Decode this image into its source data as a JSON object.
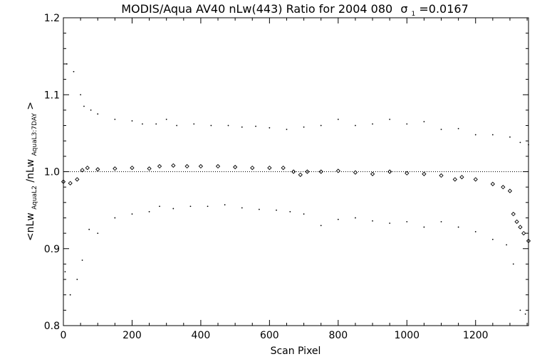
{
  "chart_data": {
    "type": "scatter",
    "title_main": "MODIS/Aqua AV40 nLw(443) Ratio for 2004 080",
    "title_sigma": "σ",
    "title_sigma_sub": "1",
    "title_sigma_value": "=0.0167",
    "xlabel": "Scan Pixel",
    "ylabel_parts": {
      "open": "<nLw",
      "sub1": "AquaL2",
      "mid": "/nLw",
      "sub2": "AquaL3:7DAY",
      "close": ">"
    },
    "xlim": [
      0,
      1354
    ],
    "ylim": [
      0.8,
      1.2
    ],
    "xticks": [
      0,
      200,
      400,
      600,
      800,
      1000,
      1200
    ],
    "yticks": [
      0.8,
      0.9,
      1.0,
      1.1,
      1.2
    ],
    "reference_line": 1.0,
    "grid": false,
    "series": [
      {
        "role": "mean",
        "marker": "diamond",
        "points": [
          [
            0,
            0.987
          ],
          [
            20,
            0.985
          ],
          [
            40,
            0.99
          ],
          [
            55,
            1.002
          ],
          [
            70,
            1.005
          ],
          [
            100,
            1.003
          ],
          [
            150,
            1.004
          ],
          [
            200,
            1.005
          ],
          [
            250,
            1.004
          ],
          [
            280,
            1.007
          ],
          [
            320,
            1.008
          ],
          [
            360,
            1.007
          ],
          [
            400,
            1.007
          ],
          [
            450,
            1.007
          ],
          [
            500,
            1.006
          ],
          [
            550,
            1.005
          ],
          [
            600,
            1.005
          ],
          [
            640,
            1.005
          ],
          [
            670,
            1.0
          ],
          [
            690,
            0.996
          ],
          [
            710,
            1.0
          ],
          [
            750,
            1.0
          ],
          [
            800,
            1.001
          ],
          [
            850,
            0.999
          ],
          [
            900,
            0.997
          ],
          [
            950,
            1.0
          ],
          [
            1000,
            0.998
          ],
          [
            1050,
            0.997
          ],
          [
            1100,
            0.995
          ],
          [
            1140,
            0.99
          ],
          [
            1160,
            0.993
          ],
          [
            1200,
            0.99
          ],
          [
            1250,
            0.984
          ],
          [
            1280,
            0.98
          ],
          [
            1300,
            0.975
          ],
          [
            1310,
            0.945
          ],
          [
            1320,
            0.935
          ],
          [
            1330,
            0.928
          ],
          [
            1340,
            0.92
          ],
          [
            1354,
            0.91
          ]
        ]
      },
      {
        "role": "upper",
        "marker": "dot",
        "points": [
          [
            10,
            1.14
          ],
          [
            30,
            1.13
          ],
          [
            50,
            1.1
          ],
          [
            60,
            1.085
          ],
          [
            80,
            1.08
          ],
          [
            100,
            1.075
          ],
          [
            150,
            1.068
          ],
          [
            200,
            1.066
          ],
          [
            230,
            1.062
          ],
          [
            270,
            1.062
          ],
          [
            300,
            1.068
          ],
          [
            330,
            1.06
          ],
          [
            380,
            1.062
          ],
          [
            430,
            1.06
          ],
          [
            480,
            1.06
          ],
          [
            520,
            1.058
          ],
          [
            560,
            1.059
          ],
          [
            600,
            1.057
          ],
          [
            650,
            1.055
          ],
          [
            700,
            1.058
          ],
          [
            750,
            1.06
          ],
          [
            800,
            1.068
          ],
          [
            850,
            1.06
          ],
          [
            900,
            1.062
          ],
          [
            950,
            1.068
          ],
          [
            1000,
            1.062
          ],
          [
            1050,
            1.065
          ],
          [
            1100,
            1.055
          ],
          [
            1150,
            1.056
          ],
          [
            1200,
            1.048
          ],
          [
            1250,
            1.048
          ],
          [
            1300,
            1.045
          ],
          [
            1330,
            1.038
          ],
          [
            1354,
            1.035
          ]
        ]
      },
      {
        "role": "lower",
        "marker": "dot",
        "points": [
          [
            5,
            0.87
          ],
          [
            20,
            0.84
          ],
          [
            40,
            0.86
          ],
          [
            55,
            0.885
          ],
          [
            75,
            0.925
          ],
          [
            100,
            0.92
          ],
          [
            150,
            0.94
          ],
          [
            200,
            0.945
          ],
          [
            250,
            0.948
          ],
          [
            280,
            0.955
          ],
          [
            320,
            0.952
          ],
          [
            370,
            0.955
          ],
          [
            420,
            0.955
          ],
          [
            470,
            0.957
          ],
          [
            520,
            0.953
          ],
          [
            570,
            0.951
          ],
          [
            620,
            0.95
          ],
          [
            660,
            0.948
          ],
          [
            700,
            0.945
          ],
          [
            750,
            0.93
          ],
          [
            800,
            0.938
          ],
          [
            850,
            0.94
          ],
          [
            900,
            0.936
          ],
          [
            950,
            0.933
          ],
          [
            1000,
            0.935
          ],
          [
            1050,
            0.928
          ],
          [
            1100,
            0.935
          ],
          [
            1150,
            0.928
          ],
          [
            1200,
            0.922
          ],
          [
            1250,
            0.912
          ],
          [
            1290,
            0.905
          ],
          [
            1310,
            0.88
          ],
          [
            1330,
            0.82
          ],
          [
            1345,
            0.815
          ]
        ]
      }
    ]
  }
}
